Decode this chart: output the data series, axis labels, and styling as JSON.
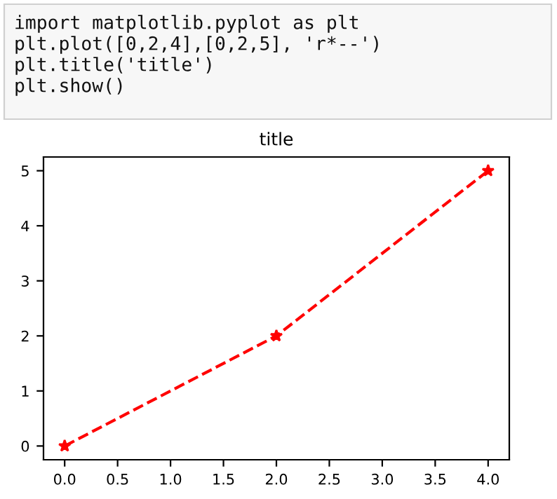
{
  "chart_data": {
    "type": "line",
    "title": "title",
    "x": [
      0,
      2,
      4
    ],
    "series": [
      {
        "color": "#ff0000",
        "values": [
          0,
          2,
          5
        ]
      }
    ],
    "xlim": [
      -0.2,
      4.2
    ],
    "ylim": [
      -0.25,
      5.25
    ],
    "xticks": [
      {
        "value": 0,
        "label": "0.0"
      },
      {
        "value": 0.5,
        "label": "0.5"
      },
      {
        "value": 1,
        "label": "1.0"
      },
      {
        "value": 1.5,
        "label": "1.5"
      },
      {
        "value": 2,
        "label": "2.0"
      },
      {
        "value": 2.5,
        "label": "2.5"
      },
      {
        "value": 3,
        "label": "3.0"
      },
      {
        "value": 3.5,
        "label": "3.5"
      },
      {
        "value": 4,
        "label": "4.0"
      }
    ],
    "yticks": [
      0,
      1,
      2,
      3,
      4,
      5
    ],
    "marker": "star",
    "line_style": "dashed",
    "grid": false,
    "legend": false,
    "annotations": [
      "import matplotlib.pyplot as plt",
      "plt.plot([0,2,4],[0,2,5], 'r*--')",
      "plt.title('title')",
      "plt.show()"
    ]
  }
}
